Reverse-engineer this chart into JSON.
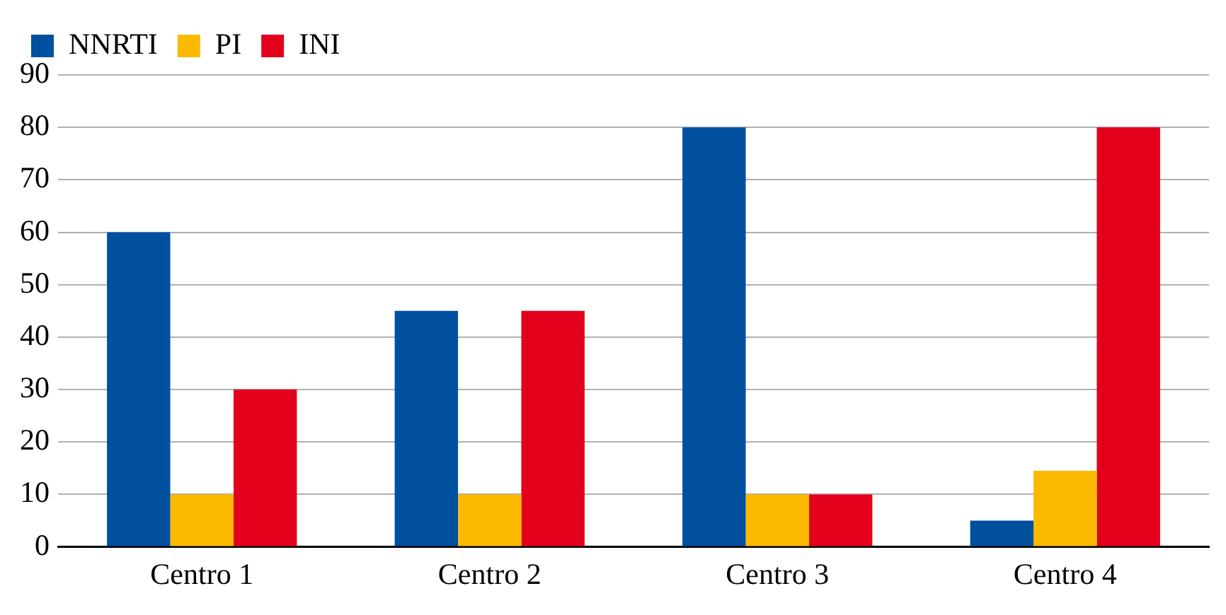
{
  "chart_data": {
    "type": "bar",
    "categories": [
      "Centro 1",
      "Centro 2",
      "Centro 3",
      "Centro 4"
    ],
    "series": [
      {
        "name": "NNRTI",
        "color": "#0050a0",
        "values": [
          60,
          45,
          80,
          5
        ]
      },
      {
        "name": "PI",
        "color": "#fbb900",
        "values": [
          10,
          10,
          10,
          14.5
        ]
      },
      {
        "name": "INI",
        "color": "#e2001a",
        "values": [
          30,
          45,
          10,
          80
        ]
      }
    ],
    "ylim": [
      0,
      90
    ],
    "yticks": [
      0,
      10,
      20,
      30,
      40,
      50,
      60,
      70,
      80,
      90
    ],
    "grid": "y",
    "legend": "top left"
  }
}
